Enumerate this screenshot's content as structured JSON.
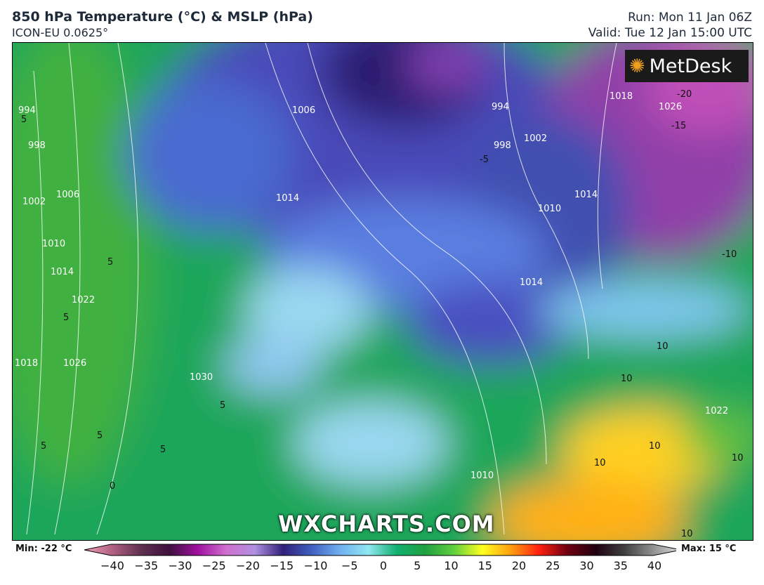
{
  "header": {
    "title": "850 hPa Temperature (°C) & MSLP (hPa)",
    "model": "ICON-EU 0.0625°",
    "run": "Run: Mon 11 Jan 06Z",
    "valid": "Valid: Tue 12 Jan 15:00 UTC"
  },
  "logo": {
    "text": "MetDesk"
  },
  "watermark": "WXCHARTS.COM",
  "colorbar": {
    "min_label": "Min: -22 °C",
    "max_label": "Max: 15 °C",
    "ticks": [
      "−40",
      "−35",
      "−30",
      "−25",
      "−20",
      "−15",
      "−10",
      "−5",
      "0",
      "5",
      "10",
      "15",
      "20",
      "25",
      "30",
      "35",
      "40"
    ],
    "colors": [
      "#f2a0b8",
      "#b06080",
      "#603050",
      "#401040",
      "#a010a0",
      "#d070d0",
      "#b090e0",
      "#30207a",
      "#4060c0",
      "#70b0f0",
      "#90e8f0",
      "#10b070",
      "#20a040",
      "#60d040",
      "#ffff20",
      "#ffa010",
      "#ff2010",
      "#700010",
      "#200010",
      "#404040",
      "#909090",
      "#e0e0e0"
    ]
  },
  "isobar_labels": [
    "994",
    "998",
    "1002",
    "1006",
    "1010",
    "1014",
    "1018",
    "1022",
    "1026",
    "1030",
    "1006",
    "1014",
    "994",
    "998",
    "1002",
    "1010",
    "1014",
    "1018",
    "1026",
    "1014",
    "1010",
    "1022"
  ],
  "temp_labels": [
    "-20",
    "-15",
    "-10",
    "-5",
    "5",
    "5",
    "5",
    "5",
    "5",
    "5",
    "5",
    "0",
    "10",
    "10",
    "10",
    "10",
    "10",
    "10"
  ]
}
